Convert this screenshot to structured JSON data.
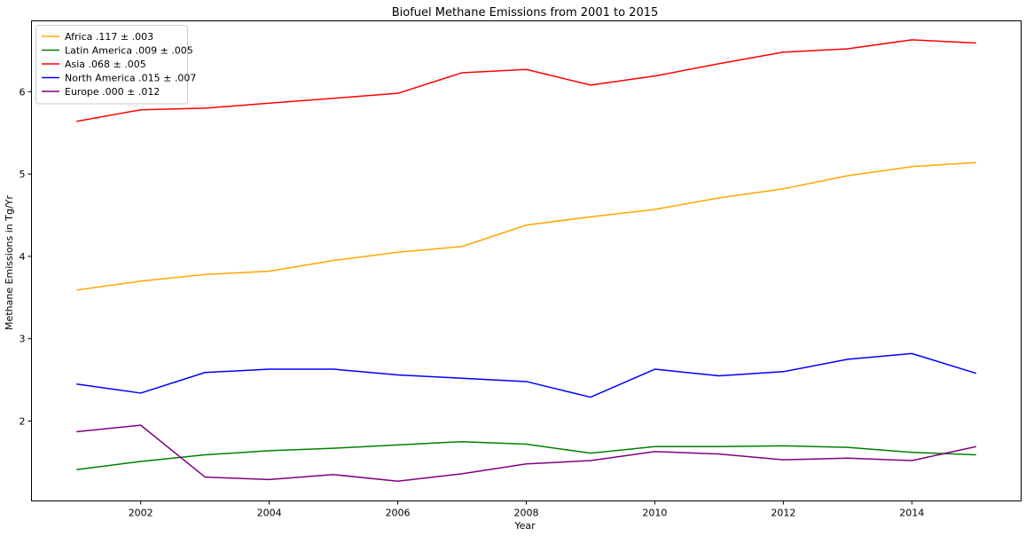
{
  "chart_data": {
    "type": "line",
    "title": "Biofuel Methane Emissions from 2001 to 2015",
    "xlabel": "Year",
    "ylabel": "Methane Emissions in Tg/Yr",
    "xlim": [
      2000.3,
      2015.7
    ],
    "ylim": [
      1.03,
      6.86
    ],
    "xticks": [
      2002,
      2004,
      2006,
      2008,
      2010,
      2012,
      2014
    ],
    "yticks": [
      2,
      3,
      4,
      5,
      6
    ],
    "grid": false,
    "legend_position": "top-left",
    "x": [
      2001,
      2002,
      2003,
      2004,
      2005,
      2006,
      2007,
      2008,
      2009,
      2010,
      2011,
      2012,
      2013,
      2014,
      2015
    ],
    "series": [
      {
        "name": "Africa .117 ± .003",
        "color": "#ffa500",
        "values": [
          3.59,
          3.7,
          3.78,
          3.82,
          3.95,
          4.05,
          4.12,
          4.38,
          4.48,
          4.57,
          4.71,
          4.82,
          4.98,
          5.09,
          5.14
        ]
      },
      {
        "name": "Latin America .009 ± .005",
        "color": "#008000",
        "values": [
          1.41,
          1.51,
          1.59,
          1.64,
          1.67,
          1.71,
          1.75,
          1.72,
          1.61,
          1.69,
          1.69,
          1.7,
          1.68,
          1.62,
          1.59
        ]
      },
      {
        "name": "Asia .068 ± .005",
        "color": "#ff0000",
        "values": [
          5.64,
          5.78,
          5.8,
          5.86,
          5.92,
          5.98,
          6.23,
          6.27,
          6.08,
          6.19,
          6.34,
          6.48,
          6.52,
          6.63,
          6.59
        ]
      },
      {
        "name": "North America .015 ± .007",
        "color": "#0000ff",
        "values": [
          2.45,
          2.34,
          2.59,
          2.63,
          2.63,
          2.56,
          2.52,
          2.48,
          2.29,
          2.63,
          2.55,
          2.6,
          2.75,
          2.82,
          2.58
        ]
      },
      {
        "name": "Europe .000 ± .012",
        "color": "#800080",
        "values": [
          1.87,
          1.95,
          1.32,
          1.29,
          1.35,
          1.27,
          1.36,
          1.48,
          1.52,
          1.63,
          1.6,
          1.53,
          1.55,
          1.52,
          1.69
        ]
      }
    ]
  }
}
